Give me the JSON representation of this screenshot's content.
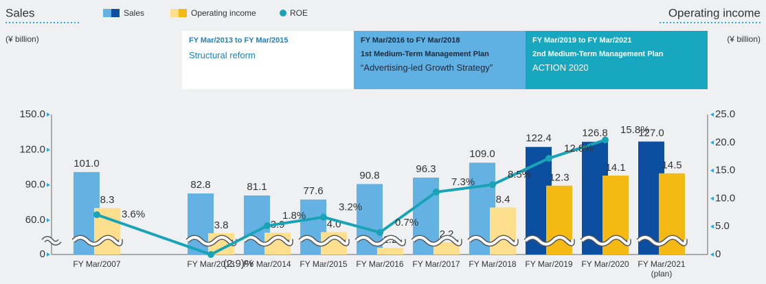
{
  "header": {
    "left_title": "Sales",
    "left_unit": "(¥ billion)",
    "right_title": "Operating income",
    "right_unit": "(¥ billion)"
  },
  "periods": [
    {
      "range": "FY Mar/2013 to FY Mar/2015",
      "lines": [
        "Structural reform"
      ]
    },
    {
      "range": "FY Mar/2016 to FY Mar/2018",
      "lines": [
        "1st Medium-Term Management Plan",
        "“Advertising-led Growth Strategy”"
      ]
    },
    {
      "range": "FY Mar/2019 to FY Mar/2021",
      "lines": [
        "2nd Medium-Term Management Plan",
        "ACTION 2020"
      ]
    }
  ],
  "chart_data": {
    "type": "bar",
    "categories": [
      "FY Mar/2007",
      "FY Mar/2013",
      "FY Mar/2014",
      "FY Mar/2015",
      "FY Mar/2016",
      "FY Mar/2017",
      "FY Mar/2018",
      "FY Mar/2019",
      "FY Mar/2020",
      "FY Mar/2021\n(plan)"
    ],
    "series": [
      {
        "name": "Sales",
        "color": "#64b1e3",
        "colors": [
          "#64b1e3",
          "#64b1e3",
          "#64b1e3",
          "#64b1e3",
          "#64b1e3",
          "#64b1e3",
          "#64b1e3",
          "#0c4ea0",
          "#0c4ea0",
          "#0c4ea0"
        ],
        "values": [
          101,
          82.8,
          81.1,
          77.6,
          90.8,
          96.3,
          109,
          122.4,
          126.8,
          127
        ],
        "value_labels": [
          "101.0",
          "82.8",
          "81.1",
          "77.6",
          "90.8",
          "96.3",
          "109.0",
          "122.4",
          "126.8",
          "127.0"
        ]
      },
      {
        "name": "Operating income",
        "axis": "y2",
        "color": "#fddf8e",
        "colors": [
          "#fddf8e",
          "#fddf8e",
          "#fddf8e",
          "#fddf8e",
          "#fddf8e",
          "#fddf8e",
          "#fddf8e",
          "#f5b914",
          "#f5b914",
          "#f5b914"
        ],
        "values": [
          8.3,
          3.8,
          3.9,
          4.0,
          1.2,
          2.2,
          8.4,
          12.3,
          14.1,
          14.5
        ],
        "value_labels": [
          "8.3",
          "3.8",
          "3.9",
          "4.0",
          "1.2",
          "2.2",
          "8.4",
          "12.3",
          "14.1",
          "14.5"
        ]
      },
      {
        "name": "ROE",
        "type": "line",
        "color": "#19a3b6",
        "values": [
          3.6,
          -2.9,
          1.8,
          3.2,
          0.7,
          7.3,
          8.5,
          12.8,
          15.8,
          null
        ],
        "value_labels": [
          "3.6%",
          "(2.9)%",
          "1.8%",
          "3.2%",
          "0.7%",
          "7.3%",
          "8.5%",
          "12.8%",
          "15.8%",
          null
        ]
      }
    ],
    "ylim": [
      0,
      150
    ],
    "ybreak": [
      0,
      60
    ],
    "yticks": [
      0,
      {
        "value": 60,
        "label": "60.0"
      },
      {
        "value": 90,
        "label": "90.0"
      },
      {
        "value": 120,
        "label": "120.0"
      },
      {
        "value": 150,
        "label": "150.0"
      }
    ],
    "y2lim": [
      0,
      25
    ],
    "y2ticks": [
      0,
      {
        "value": 5,
        "label": "5.0"
      },
      {
        "value": 10,
        "label": "10.0"
      },
      {
        "value": 15,
        "label": "15.0"
      },
      {
        "value": 20,
        "label": "20.0"
      },
      {
        "value": 25,
        "label": "25.0"
      }
    ]
  }
}
